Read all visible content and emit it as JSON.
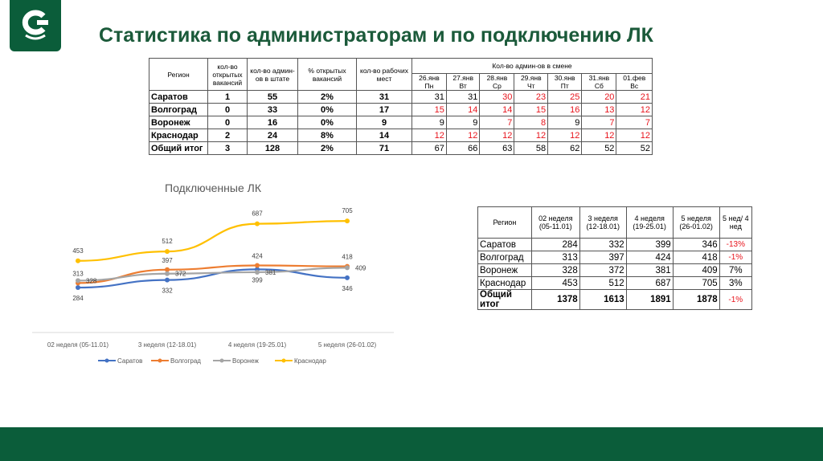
{
  "title": "Статистика по администраторам и по подключению ЛК",
  "table1": {
    "headers": [
      "Регион",
      "кол-во открытых вакансий",
      "кол-во админ-ов в штате",
      "% открытых вакансий",
      "кол-во рабочих мест"
    ],
    "shift_header": "Кол-во админ-ов в смене",
    "days": [
      "26.янв Пн",
      "27.янв Вт",
      "28.янв Ср",
      "29.янв Чт",
      "30.янв Пт",
      "31.янв Сб",
      "01.фев Вс"
    ],
    "rows": [
      {
        "region": "Саратов",
        "vac": "1",
        "staff": "55",
        "pct": "2%",
        "places": "31",
        "shifts": [
          "31",
          "31",
          "30",
          "23",
          "25",
          "20",
          "21"
        ],
        "red": [
          0,
          0,
          1,
          1,
          1,
          1,
          1
        ]
      },
      {
        "region": "Волгоград",
        "vac": "0",
        "staff": "33",
        "pct": "0%",
        "places": "17",
        "shifts": [
          "15",
          "14",
          "14",
          "15",
          "16",
          "13",
          "12"
        ],
        "red": [
          1,
          1,
          1,
          1,
          1,
          1,
          1
        ]
      },
      {
        "region": "Воронеж",
        "vac": "0",
        "staff": "16",
        "pct": "0%",
        "places": "9",
        "shifts": [
          "9",
          "9",
          "7",
          "8",
          "9",
          "7",
          "7"
        ],
        "red": [
          0,
          0,
          1,
          1,
          0,
          1,
          1
        ]
      },
      {
        "region": "Краснодар",
        "vac": "2",
        "staff": "24",
        "pct": "8%",
        "places": "14",
        "shifts": [
          "12",
          "12",
          "12",
          "12",
          "12",
          "12",
          "12"
        ],
        "red": [
          1,
          1,
          1,
          1,
          1,
          1,
          1
        ]
      },
      {
        "region": "Общий итог",
        "vac": "3",
        "staff": "128",
        "pct": "2%",
        "places": "71",
        "shifts": [
          "67",
          "66",
          "63",
          "58",
          "62",
          "52",
          "52"
        ],
        "red": [
          0,
          0,
          0,
          0,
          0,
          0,
          0
        ]
      }
    ]
  },
  "table2": {
    "headers": [
      "Регион",
      "02 неделя (05-11.01)",
      "3 неделя (12-18.01)",
      "4 неделя (19-25.01)",
      "5 неделя (26-01.02)",
      "5 нед/ 4 нед"
    ],
    "rows": [
      {
        "region": "Саратов",
        "v": [
          "284",
          "332",
          "399",
          "346"
        ],
        "ratio": "-13%",
        "red": true
      },
      {
        "region": "Волгоград",
        "v": [
          "313",
          "397",
          "424",
          "418"
        ],
        "ratio": "-1%",
        "red": true
      },
      {
        "region": "Воронеж",
        "v": [
          "328",
          "372",
          "381",
          "409"
        ],
        "ratio": "7%",
        "red": false
      },
      {
        "region": "Краснодар",
        "v": [
          "453",
          "512",
          "687",
          "705"
        ],
        "ratio": "3%",
        "red": false
      },
      {
        "region": "Общий итог",
        "v": [
          "1378",
          "1613",
          "1891",
          "1878"
        ],
        "ratio": "-1%",
        "red": true
      }
    ]
  },
  "chart_data": {
    "type": "line",
    "title": "Подключенные ЛК",
    "categories": [
      "02 неделя (05-11.01)",
      "3 неделя (12-18.01)",
      "4 неделя (19-25.01)",
      "5 неделя (26-01.02)"
    ],
    "series": [
      {
        "name": "Саратов",
        "values": [
          284,
          332,
          399,
          346
        ],
        "color": "#4472c4"
      },
      {
        "name": "Волгоград",
        "values": [
          313,
          397,
          424,
          418
        ],
        "color": "#ed7d31"
      },
      {
        "name": "Воронеж",
        "values": [
          328,
          372,
          381,
          409
        ],
        "color": "#a5a5a5"
      },
      {
        "name": "Краснодар",
        "values": [
          453,
          512,
          687,
          705
        ],
        "color": "#ffc000"
      }
    ],
    "legend": "bottom",
    "grid": false
  },
  "colors": {
    "brand": "#0b5d3a",
    "negative": "#e8141c"
  }
}
